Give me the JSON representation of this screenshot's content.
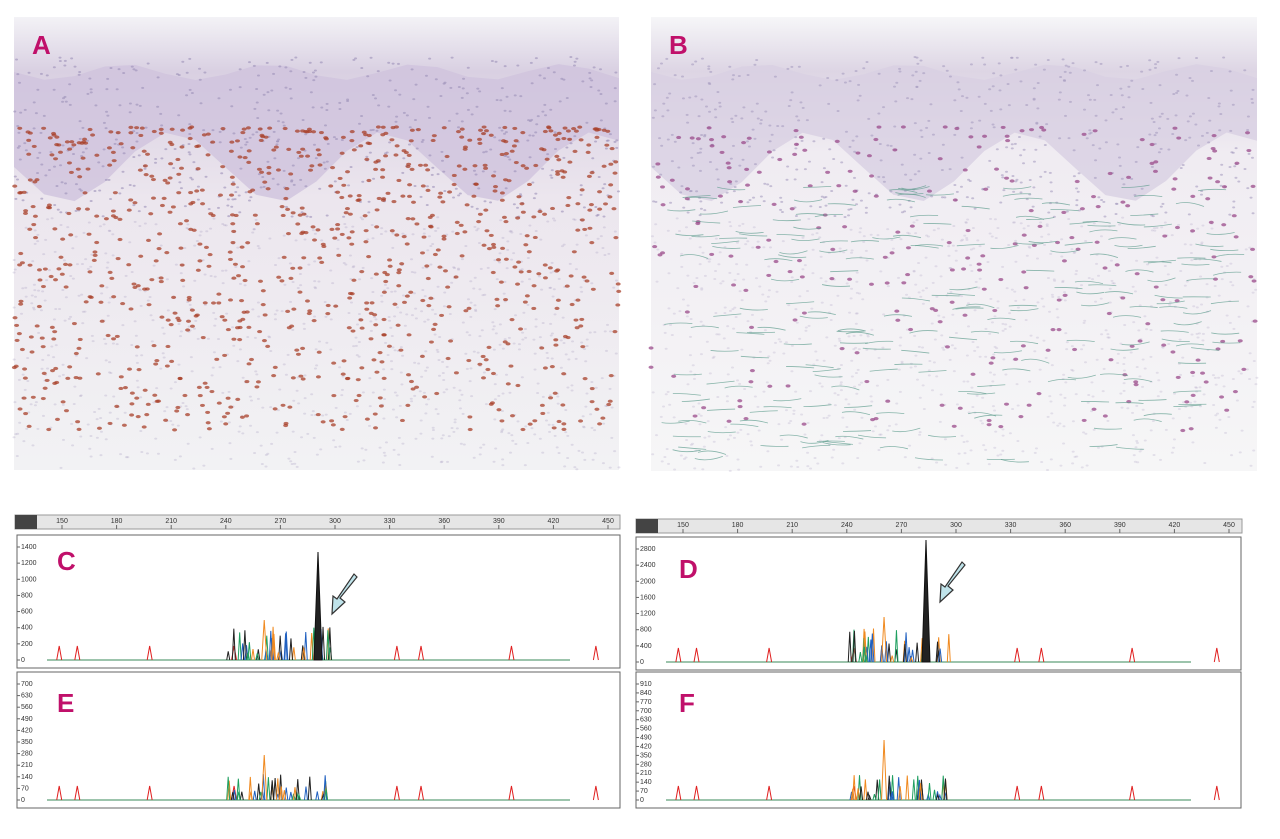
{
  "panels": [
    {
      "label": "A"
    },
    {
      "label": "B"
    }
  ],
  "electropherograms": [
    {
      "label": "C",
      "x_ticks": [
        150,
        180,
        210,
        240,
        270,
        300,
        330,
        360,
        390,
        420,
        450
      ],
      "y_ticks": [
        0,
        200,
        400,
        600,
        800,
        1000,
        1200,
        1400
      ]
    },
    {
      "label": "D",
      "x_ticks": [
        150,
        180,
        210,
        240,
        270,
        300,
        330,
        360,
        390,
        420,
        450
      ],
      "y_ticks": [
        0,
        400,
        800,
        1200,
        1600,
        2000,
        2400,
        2800
      ]
    },
    {
      "label": "E",
      "y_ticks": [
        0,
        70,
        140,
        210,
        280,
        350,
        420,
        490,
        560,
        630,
        700
      ]
    },
    {
      "label": "F",
      "y_ticks": [
        0,
        70,
        140,
        210,
        280,
        350,
        420,
        490,
        560,
        630,
        700,
        770,
        840,
        910
      ]
    }
  ]
}
